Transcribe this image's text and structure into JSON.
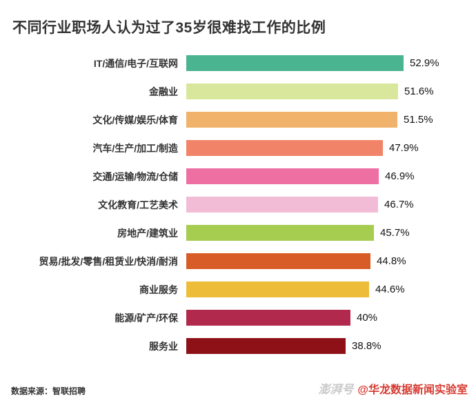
{
  "title": "不同行业职场人认为过了35岁很难找工作的比例",
  "footer": {
    "source": "数据来源：智联招聘",
    "watermark_logo": "澎湃号",
    "watermark": "@华龙数据新闻实验室",
    "watermark_color": "#d63a30"
  },
  "chart_data": {
    "type": "bar",
    "orientation": "horizontal",
    "title": "不同行业职场人认为过了35岁很难找工作的比例",
    "categories": [
      "IT/通信/电子/互联网",
      "金融业",
      "文化/传媒/娱乐/体育",
      "汽车/生产/加工/制造",
      "交通/运输/物流/仓储",
      "文化教育/工艺美术",
      "房地产/建筑业",
      "贸易/批发/零售/租赁业/快消/耐消",
      "商业服务",
      "能源/矿产/环保",
      "服务业"
    ],
    "values": [
      52.9,
      51.6,
      51.5,
      47.9,
      46.9,
      46.7,
      45.7,
      44.8,
      44.6,
      40,
      38.8
    ],
    "value_labels": [
      "52.9%",
      "51.6%",
      "51.5%",
      "47.9%",
      "46.9%",
      "46.7%",
      "45.7%",
      "44.8%",
      "44.6%",
      "40%",
      "38.8%"
    ],
    "colors": [
      "#4ab491",
      "#d9e79c",
      "#f1b26b",
      "#f18368",
      "#ee70a3",
      "#f2bcd7",
      "#a6cd4f",
      "#d85c28",
      "#edbd39",
      "#b12a4e",
      "#8e1117"
    ],
    "xlim": [
      0,
      55
    ],
    "grid": false,
    "legend": false
  }
}
